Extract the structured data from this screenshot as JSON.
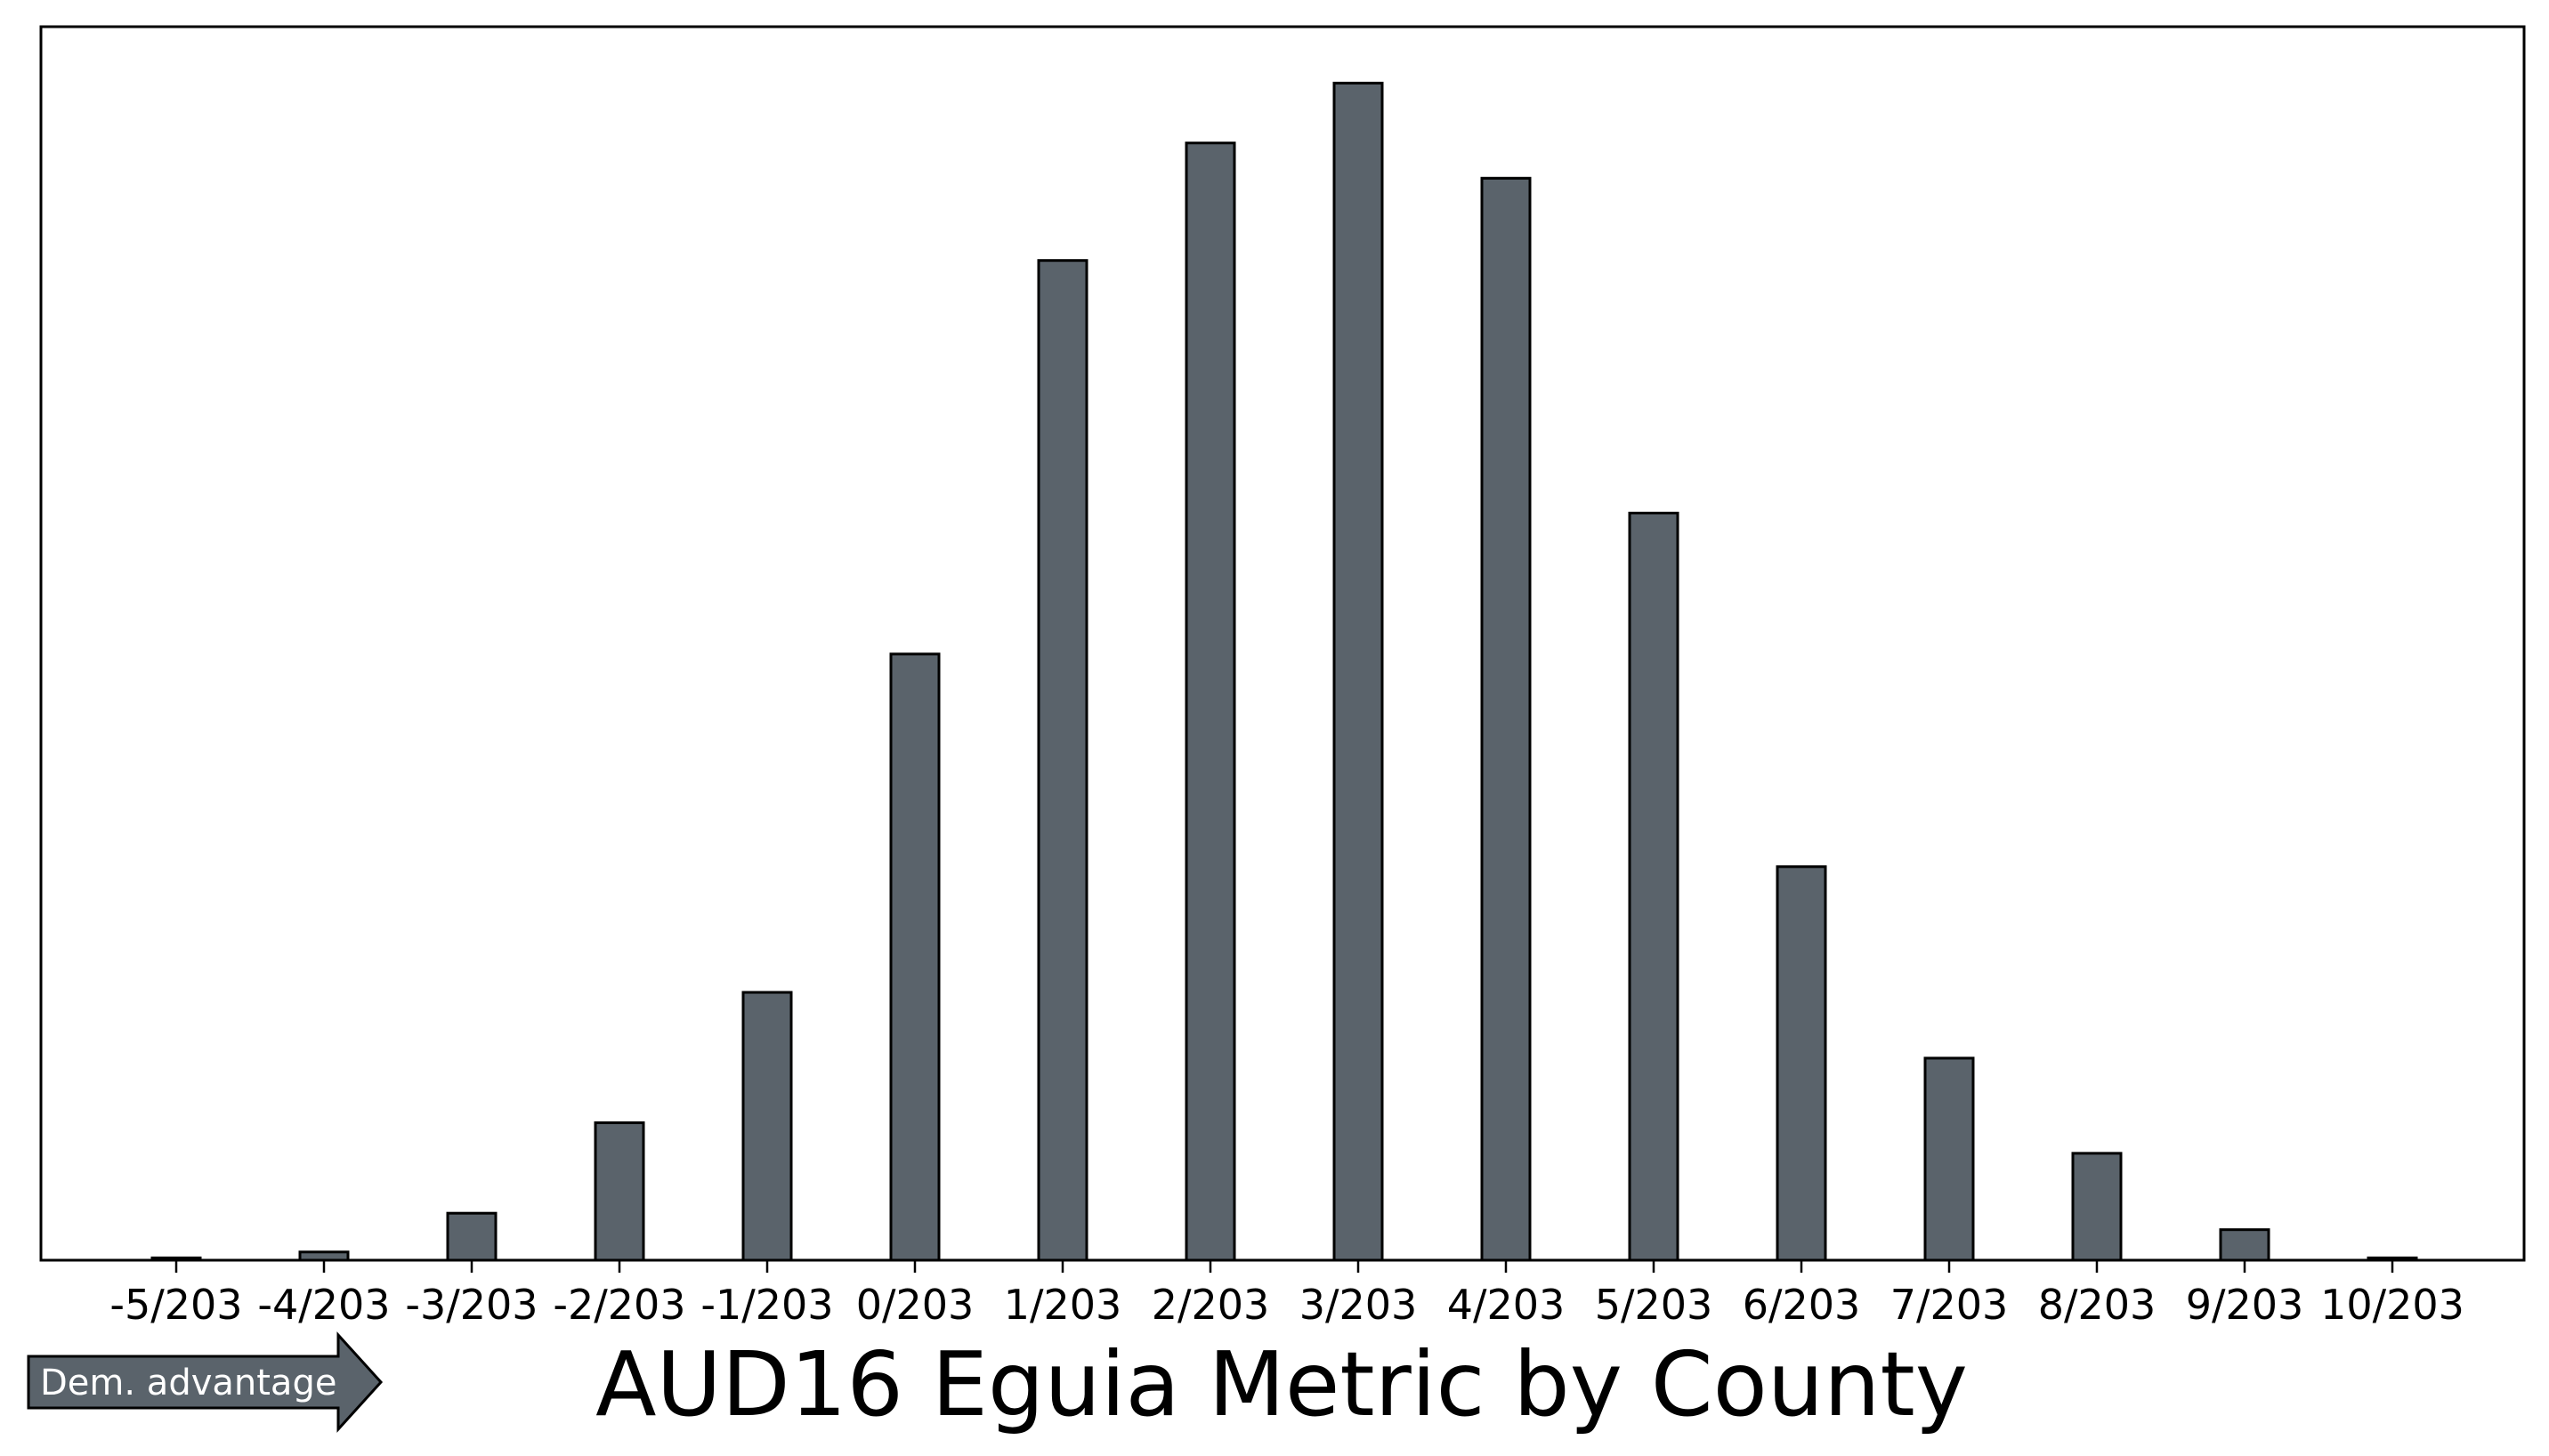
{
  "chart_data": {
    "type": "bar",
    "title": "AUD16 Eguia Metric by County",
    "xlabel": "",
    "ylabel": "",
    "categories": [
      "-5/203",
      "-4/203",
      "-3/203",
      "-2/203",
      "-1/203",
      "0/203",
      "1/203",
      "2/203",
      "3/203",
      "4/203",
      "5/203",
      "6/203",
      "7/203",
      "8/203",
      "9/203",
      "10/203"
    ],
    "values": [
      0.2,
      0.7,
      4.0,
      11.7,
      22.8,
      51.6,
      85.1,
      95.1,
      100.2,
      92.1,
      63.6,
      33.5,
      17.2,
      9.1,
      2.6,
      0.2
    ],
    "ylim": [
      0,
      105
    ],
    "y_ticks_shown": false,
    "grid": false,
    "bar_color": "#5a636b",
    "edge_color": "#000000"
  },
  "annotation": {
    "arrow_label": "Dem. advantage",
    "arrow_color": "#5a636b"
  }
}
